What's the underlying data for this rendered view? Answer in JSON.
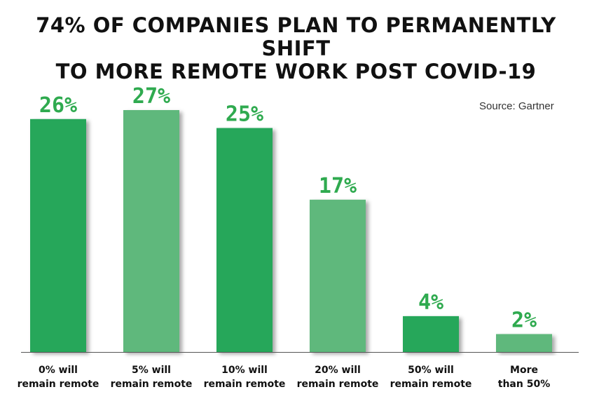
{
  "chart_data": {
    "type": "bar",
    "title_lines": [
      "74% OF COMPANIES PLAN TO PERMANENTLY SHIFT",
      "TO MORE REMOTE WORK POST COVID-19"
    ],
    "source": "Source: Gartner",
    "categories": [
      [
        "0% will",
        "remain remote"
      ],
      [
        "5% will",
        "remain remote"
      ],
      [
        "10% will",
        "remain remote"
      ],
      [
        "20% will",
        "remain remote"
      ],
      [
        "50% will",
        "remain remote"
      ],
      [
        "More",
        "than 50%"
      ]
    ],
    "values": [
      26,
      27,
      25,
      17,
      4,
      2
    ],
    "value_labels": [
      "26%",
      "27%",
      "25%",
      "17%",
      "4%",
      "2%"
    ],
    "bar_colors": [
      "#27a75a",
      "#5fb87c",
      "#27a75a",
      "#5fb87c",
      "#27a75a",
      "#5fb87c"
    ],
    "label_color": "#2faa4f",
    "baseline_color": "#555555",
    "ylim": [
      0,
      27
    ],
    "legend": "none",
    "grid": false
  }
}
